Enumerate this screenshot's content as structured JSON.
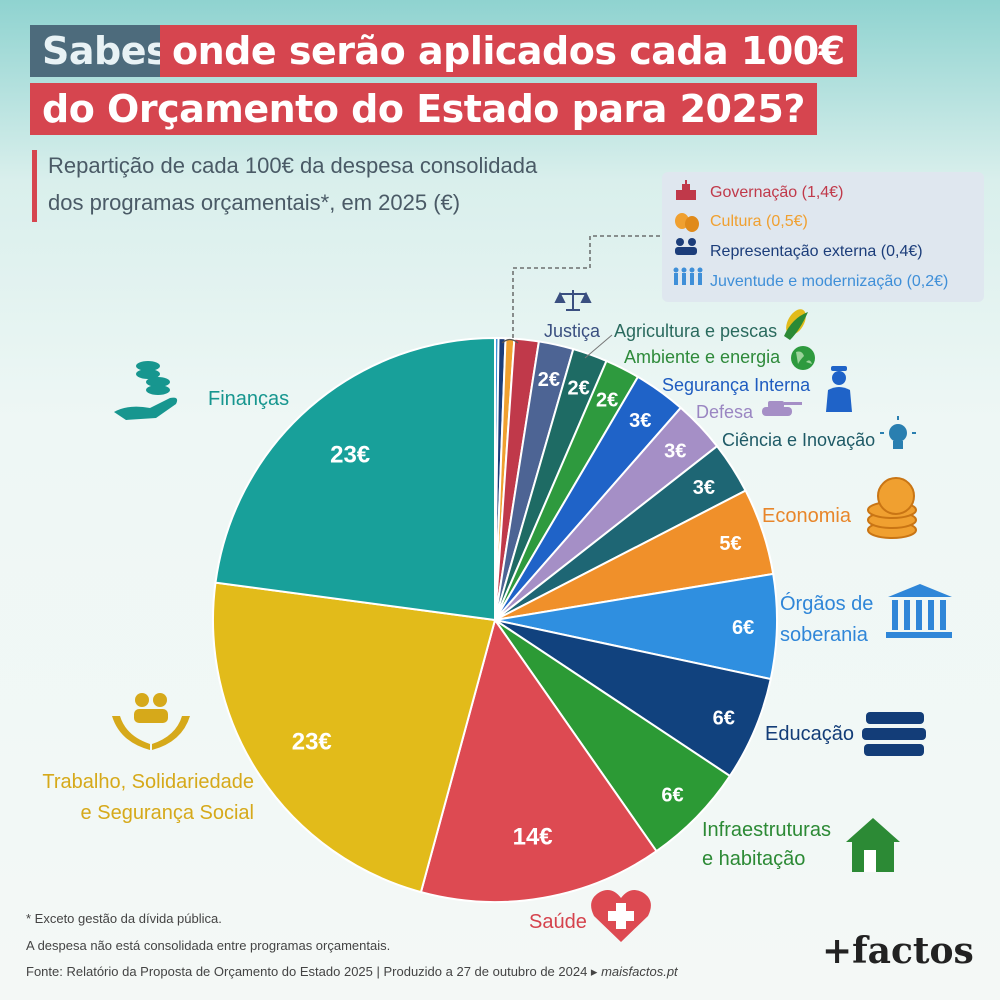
{
  "header": {
    "title_part1": "Sabes",
    "title_part2": "onde serão aplicados cada 100€",
    "title_line2": "do Orçamento do Estado para 2025?",
    "subtitle_line1": "Repartição de cada 100€ da despesa consolidada",
    "subtitle_line2": "dos programas orçamentais*, em 2025 (€)"
  },
  "legend": [
    {
      "label": "Governação (1,4€)",
      "color": "#c0394a",
      "icon": "parliament-icon"
    },
    {
      "label": "Cultura (0,5€)",
      "color": "#f0a030",
      "icon": "theater-masks-icon"
    },
    {
      "label": "Representação externa (0,4€)",
      "color": "#1c3d7a",
      "icon": "people-group-icon"
    },
    {
      "label": "Juventude e modernização (0,2€)",
      "color": "#3f8fd8",
      "icon": "youth-icon"
    }
  ],
  "chart_data": {
    "type": "pie",
    "start": "top",
    "direction": "clockwise",
    "slices": [
      {
        "label": "Juventude e modernização",
        "value": 0.2,
        "color": "#3f8fd8",
        "data_label": ""
      },
      {
        "label": "Representação externa",
        "value": 0.4,
        "color": "#1c3d7a",
        "data_label": ""
      },
      {
        "label": "Cultura",
        "value": 0.5,
        "color": "#f0a030",
        "data_label": ""
      },
      {
        "label": "Governação",
        "value": 1.4,
        "color": "#c0394a",
        "data_label": ""
      },
      {
        "label": "Justiça",
        "value": 2,
        "color": "#4d6494",
        "data_label": "2€"
      },
      {
        "label": "Agricultura e pescas",
        "value": 2,
        "color": "#1e6b64",
        "data_label": "2€"
      },
      {
        "label": "Ambiente e energia",
        "value": 2,
        "color": "#2e9a3e",
        "data_label": "2€"
      },
      {
        "label": "Segurança Interna",
        "value": 3,
        "color": "#1f63c8",
        "data_label": "3€"
      },
      {
        "label": "Defesa",
        "value": 3,
        "color": "#a58fc6",
        "data_label": "3€"
      },
      {
        "label": "Ciência e Inovação",
        "value": 3,
        "color": "#1e6674",
        "data_label": "3€"
      },
      {
        "label": "Economia",
        "value": 5,
        "color": "#f0902a",
        "data_label": "5€"
      },
      {
        "label": "Órgãos de soberania",
        "value": 6,
        "color": "#2f8fe0",
        "data_label": "6€"
      },
      {
        "label": "Educação",
        "value": 6,
        "color": "#11427e",
        "data_label": "6€"
      },
      {
        "label": "Infraestruturas e habitação",
        "value": 6,
        "color": "#2c9a35",
        "data_label": "6€"
      },
      {
        "label": "Saúde",
        "value": 14,
        "color": "#dd4a52",
        "data_label": "14€"
      },
      {
        "label": "Trabalho, Solidariedade e Segurança Social",
        "value": 23,
        "color": "#e2bb1a",
        "data_label": "23€"
      },
      {
        "label": "Finanças",
        "value": 23,
        "color": "#18a09a",
        "data_label": "23€"
      }
    ]
  },
  "category_labels": {
    "justica": "Justiça",
    "agricultura": "Agricultura e pescas",
    "ambiente": "Ambiente e energia",
    "seguranca": "Segurança Interna",
    "defesa": "Defesa",
    "ciencia": "Ciência e Inovação",
    "economia": "Economia",
    "orgaos_1": "Órgãos de",
    "orgaos_2": "soberania",
    "educacao": "Educação",
    "infra_1": "Infraestruturas",
    "infra_2": "e habitação",
    "saude": "Saúde",
    "trabalho_1": "Trabalho, Solidariedade",
    "trabalho_2": "e Segurança Social",
    "financas": "Finanças"
  },
  "label_colors": {
    "justica": "#3a4f80",
    "agricultura": "#2a6a5e",
    "ambiente": "#2e8a3a",
    "seguranca": "#1f5cc0",
    "defesa": "#9a86c2",
    "ciencia": "#1e5a66",
    "economia": "#e8862a",
    "orgaos": "#2f86d8",
    "educacao": "#133d78",
    "infra": "#2c8a35",
    "saude": "#d5434d",
    "trabalho": "#d6a91a",
    "financas": "#17968f"
  },
  "footer": {
    "note1": "* Exceto gestão da dívida pública.",
    "note2": "A despesa não está consolidada entre programas orçamentais.",
    "source": "Fonte: Relatório da Proposta de Orçamento do Estado 2025 | Produzido a 27 de outubro de 2024 ▸",
    "site": "maisfactos.pt",
    "brand": "+factos"
  }
}
